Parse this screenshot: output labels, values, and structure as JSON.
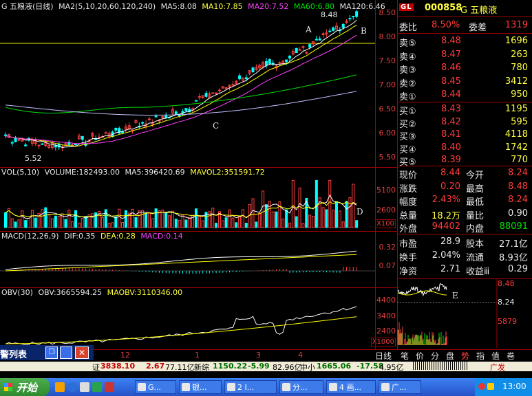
{
  "kline": {
    "title": "G 五粮液(日线)",
    "ma_label": "MA2(5,10,20,60,120,240)",
    "ma5": "MA5:8.08",
    "ma10": "MA10:7.85",
    "ma20": "MA20:7.52",
    "ma60": "MA60:6.80",
    "ma120": "MA120:6.46",
    "high_note": "8.48",
    "low_note": "5.52",
    "marks": {
      "a": "A",
      "b": "B",
      "c": "C"
    },
    "axis": [
      "8.50",
      "8.00",
      "7.50",
      "7.00",
      "6.50",
      "6.00",
      "5.50"
    ]
  },
  "volume": {
    "title": "VOL(5,10)",
    "volume": "VOLUME:182493.00",
    "ma5": "MA5:396420.69",
    "mavol2": "MAVOL2:351591.72",
    "axis": [
      "5100",
      "2600"
    ],
    "unit": "X100",
    "mark_d": "D"
  },
  "macd": {
    "title": "MACD(12,26,9)",
    "dif": "DIF:0.35",
    "dea": "DEA:0.28",
    "macd": "MACD:0.14",
    "axis": [
      "0.32",
      "0.07"
    ]
  },
  "obv": {
    "title": "OBV(30)",
    "obv": "OBV:3665594.25",
    "maobv": "MAOBV:3110346.00",
    "axis": [
      "4400",
      "3400",
      "2400"
    ],
    "unit": "X1000"
  },
  "dates": {
    "d1": "12",
    "d2": "1",
    "d3": "3",
    "d4": "4"
  },
  "quote": {
    "logo": "GL",
    "code": "000858",
    "name": "G 五粮液",
    "weibi_label": "委比",
    "weibi": "8.50%",
    "weicha_label": "委差",
    "weicha": "1319",
    "sells": [
      {
        "label": "卖⑤",
        "price": "8.48",
        "vol": "1696"
      },
      {
        "label": "卖④",
        "price": "8.47",
        "vol": "263"
      },
      {
        "label": "卖③",
        "price": "8.46",
        "vol": "780"
      },
      {
        "label": "卖②",
        "price": "8.45",
        "vol": "3412"
      },
      {
        "label": "卖①",
        "price": "8.44",
        "vol": "950"
      }
    ],
    "buys": [
      {
        "label": "买①",
        "price": "8.43",
        "vol": "1195"
      },
      {
        "label": "买②",
        "price": "8.42",
        "vol": "595"
      },
      {
        "label": "买③",
        "price": "8.41",
        "vol": "4118"
      },
      {
        "label": "买④",
        "price": "8.40",
        "vol": "1742"
      },
      {
        "label": "买⑤",
        "price": "8.39",
        "vol": "770"
      }
    ],
    "stats": [
      {
        "l1": "现价",
        "v1": "8.44",
        "l2": "今开",
        "v2": "8.24"
      },
      {
        "l1": "涨跌",
        "v1": "0.20",
        "l2": "最高",
        "v2": "8.48"
      },
      {
        "l1": "幅度",
        "v1": "2.43%",
        "l2": "最低",
        "v2": "8.24"
      },
      {
        "l1": "总量",
        "v1": "18.2万",
        "l2": "量比",
        "v2": "0.90"
      },
      {
        "l1": "外盘",
        "v1": "94402",
        "l2": "内盘",
        "v2": "88091"
      }
    ],
    "stats2": [
      {
        "l1": "市盈",
        "v1": "28.9",
        "l2": "股本",
        "v2": "27.1亿"
      },
      {
        "l1": "换手",
        "v1": "2.04%",
        "l2": "流通",
        "v2": "8.93亿"
      },
      {
        "l1": "净资",
        "v1": "2.71",
        "l2": "收益ⅲ",
        "v2": "0.29"
      }
    ]
  },
  "mini": {
    "high": "8.48",
    "mid": "8.24",
    "vol": "5879",
    "mark_e": "E"
  },
  "tabs": [
    "日线",
    "笔",
    "价",
    "分",
    "盘",
    "势",
    "指",
    "值",
    "卷"
  ],
  "ticker": {
    "left_label": "证",
    "sh": "3838.10",
    "sh_chg": "2.67",
    "sh_amt": "77.11亿",
    "new_label": "新综",
    "new_val": "1150.22",
    "new_chg": "-5.99",
    "new_amt": "82.96亿",
    "mid_label": "中小",
    "mid_val": "1665.06",
    "mid_chg": "-17.58",
    "mid_amt": "4.95亿"
  },
  "window": {
    "title": "警列表"
  },
  "taskbar": {
    "start": "开始",
    "items": [
      "G...",
      "银...",
      "2 I...",
      "分...",
      "4 画...",
      "广..."
    ],
    "tray_text": "广发",
    "time": "13:00"
  }
}
